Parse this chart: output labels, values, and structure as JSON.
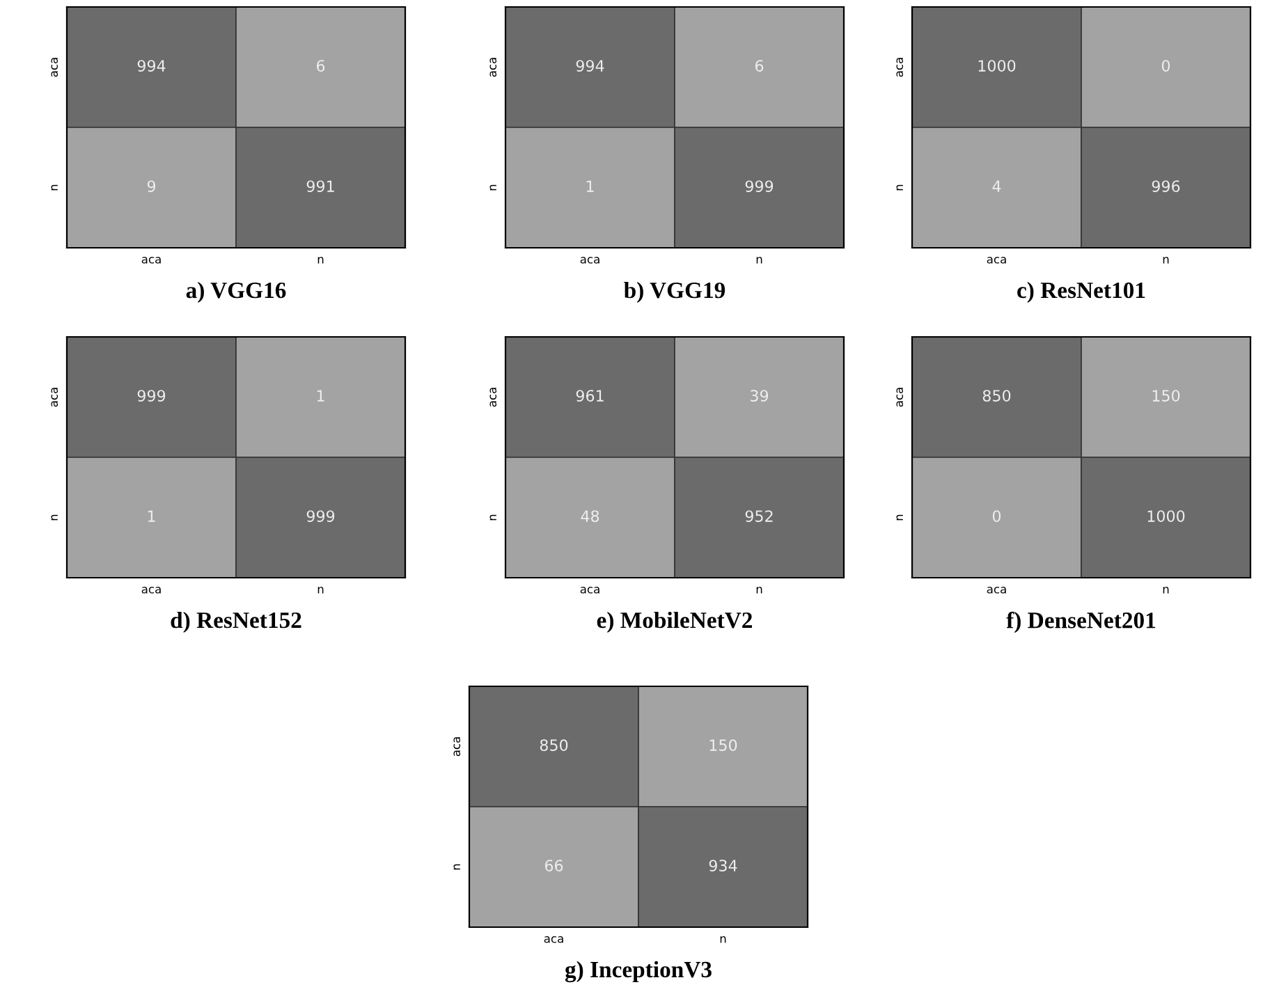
{
  "chart_data": [
    {
      "type": "heatmap",
      "title": "a) VGG16",
      "data_labels": true,
      "categories": [
        "aca",
        "n"
      ],
      "y_categories": [
        "aca",
        "n"
      ],
      "cells": [
        [
          994,
          6
        ],
        [
          9,
          991
        ]
      ],
      "colors": [
        [
          "#6b6b6b",
          "#a3a3a3"
        ],
        [
          "#a3a3a3",
          "#6b6b6b"
        ]
      ]
    },
    {
      "type": "heatmap",
      "title": "b) VGG19",
      "data_labels": true,
      "categories": [
        "aca",
        "n"
      ],
      "y_categories": [
        "aca",
        "n"
      ],
      "cells": [
        [
          994,
          6
        ],
        [
          1,
          999
        ]
      ],
      "colors": [
        [
          "#6b6b6b",
          "#a3a3a3"
        ],
        [
          "#a3a3a3",
          "#6b6b6b"
        ]
      ]
    },
    {
      "type": "heatmap",
      "title": "c) ResNet101",
      "data_labels": true,
      "categories": [
        "aca",
        "n"
      ],
      "y_categories": [
        "aca",
        "n"
      ],
      "cells": [
        [
          1000,
          0
        ],
        [
          4,
          996
        ]
      ],
      "colors": [
        [
          "#6b6b6b",
          "#a3a3a3"
        ],
        [
          "#a3a3a3",
          "#6b6b6b"
        ]
      ]
    },
    {
      "type": "heatmap",
      "title": "d) ResNet152",
      "data_labels": true,
      "categories": [
        "aca",
        "n"
      ],
      "y_categories": [
        "aca",
        "n"
      ],
      "cells": [
        [
          999,
          1
        ],
        [
          1,
          999
        ]
      ],
      "colors": [
        [
          "#6b6b6b",
          "#a3a3a3"
        ],
        [
          "#a3a3a3",
          "#6b6b6b"
        ]
      ]
    },
    {
      "type": "heatmap",
      "title": "e) MobileNetV2",
      "data_labels": true,
      "categories": [
        "aca",
        "n"
      ],
      "y_categories": [
        "aca",
        "n"
      ],
      "cells": [
        [
          961,
          39
        ],
        [
          48,
          952
        ]
      ],
      "colors": [
        [
          "#6b6b6b",
          "#a3a3a3"
        ],
        [
          "#a3a3a3",
          "#6b6b6b"
        ]
      ]
    },
    {
      "type": "heatmap",
      "title": "f) DenseNet201",
      "data_labels": true,
      "categories": [
        "aca",
        "n"
      ],
      "y_categories": [
        "aca",
        "n"
      ],
      "cells": [
        [
          850,
          150
        ],
        [
          0,
          1000
        ]
      ],
      "colors": [
        [
          "#6b6b6b",
          "#a3a3a3"
        ],
        [
          "#a3a3a3",
          "#6b6b6b"
        ]
      ]
    },
    {
      "type": "heatmap",
      "title": "g) InceptionV3",
      "data_labels": true,
      "categories": [
        "aca",
        "n"
      ],
      "y_categories": [
        "aca",
        "n"
      ],
      "cells": [
        [
          850,
          150
        ],
        [
          66,
          934
        ]
      ],
      "colors": [
        [
          "#6b6b6b",
          "#a3a3a3"
        ],
        [
          "#a3a3a3",
          "#6b6b6b"
        ]
      ]
    }
  ]
}
